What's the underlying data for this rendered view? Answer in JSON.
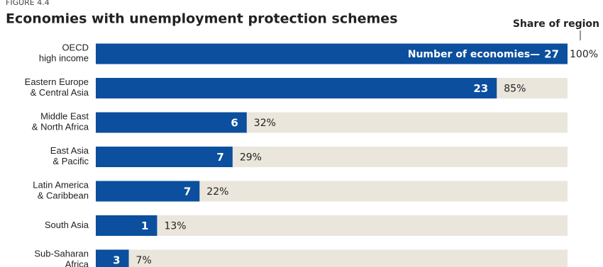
{
  "chart_data": {
    "type": "bar",
    "figure_label": "FIGURE 4.4",
    "title": "Economies with unemployment protection schemes",
    "categories": [
      "OECD\nhigh income",
      "Eastern Europe\n& Central Asia",
      "Middle East\n& North Africa",
      "East Asia\n& Pacific",
      "Latin America\n& Caribbean",
      "South Asia",
      "Sub-Saharan\nAfrica"
    ],
    "series": [
      {
        "name": "Share of region",
        "color": "#0b4f9e",
        "values": [
          100,
          85,
          32,
          29,
          22,
          13,
          7
        ],
        "value_labels": [
          "100%",
          "85%",
          "32%",
          "29%",
          "22%",
          "13%",
          "7%"
        ]
      },
      {
        "name": "Number of economies—",
        "values": [
          27,
          23,
          6,
          7,
          7,
          1,
          3
        ]
      }
    ],
    "track_color": "#ebe6dc",
    "xlim": [
      0,
      100
    ]
  }
}
